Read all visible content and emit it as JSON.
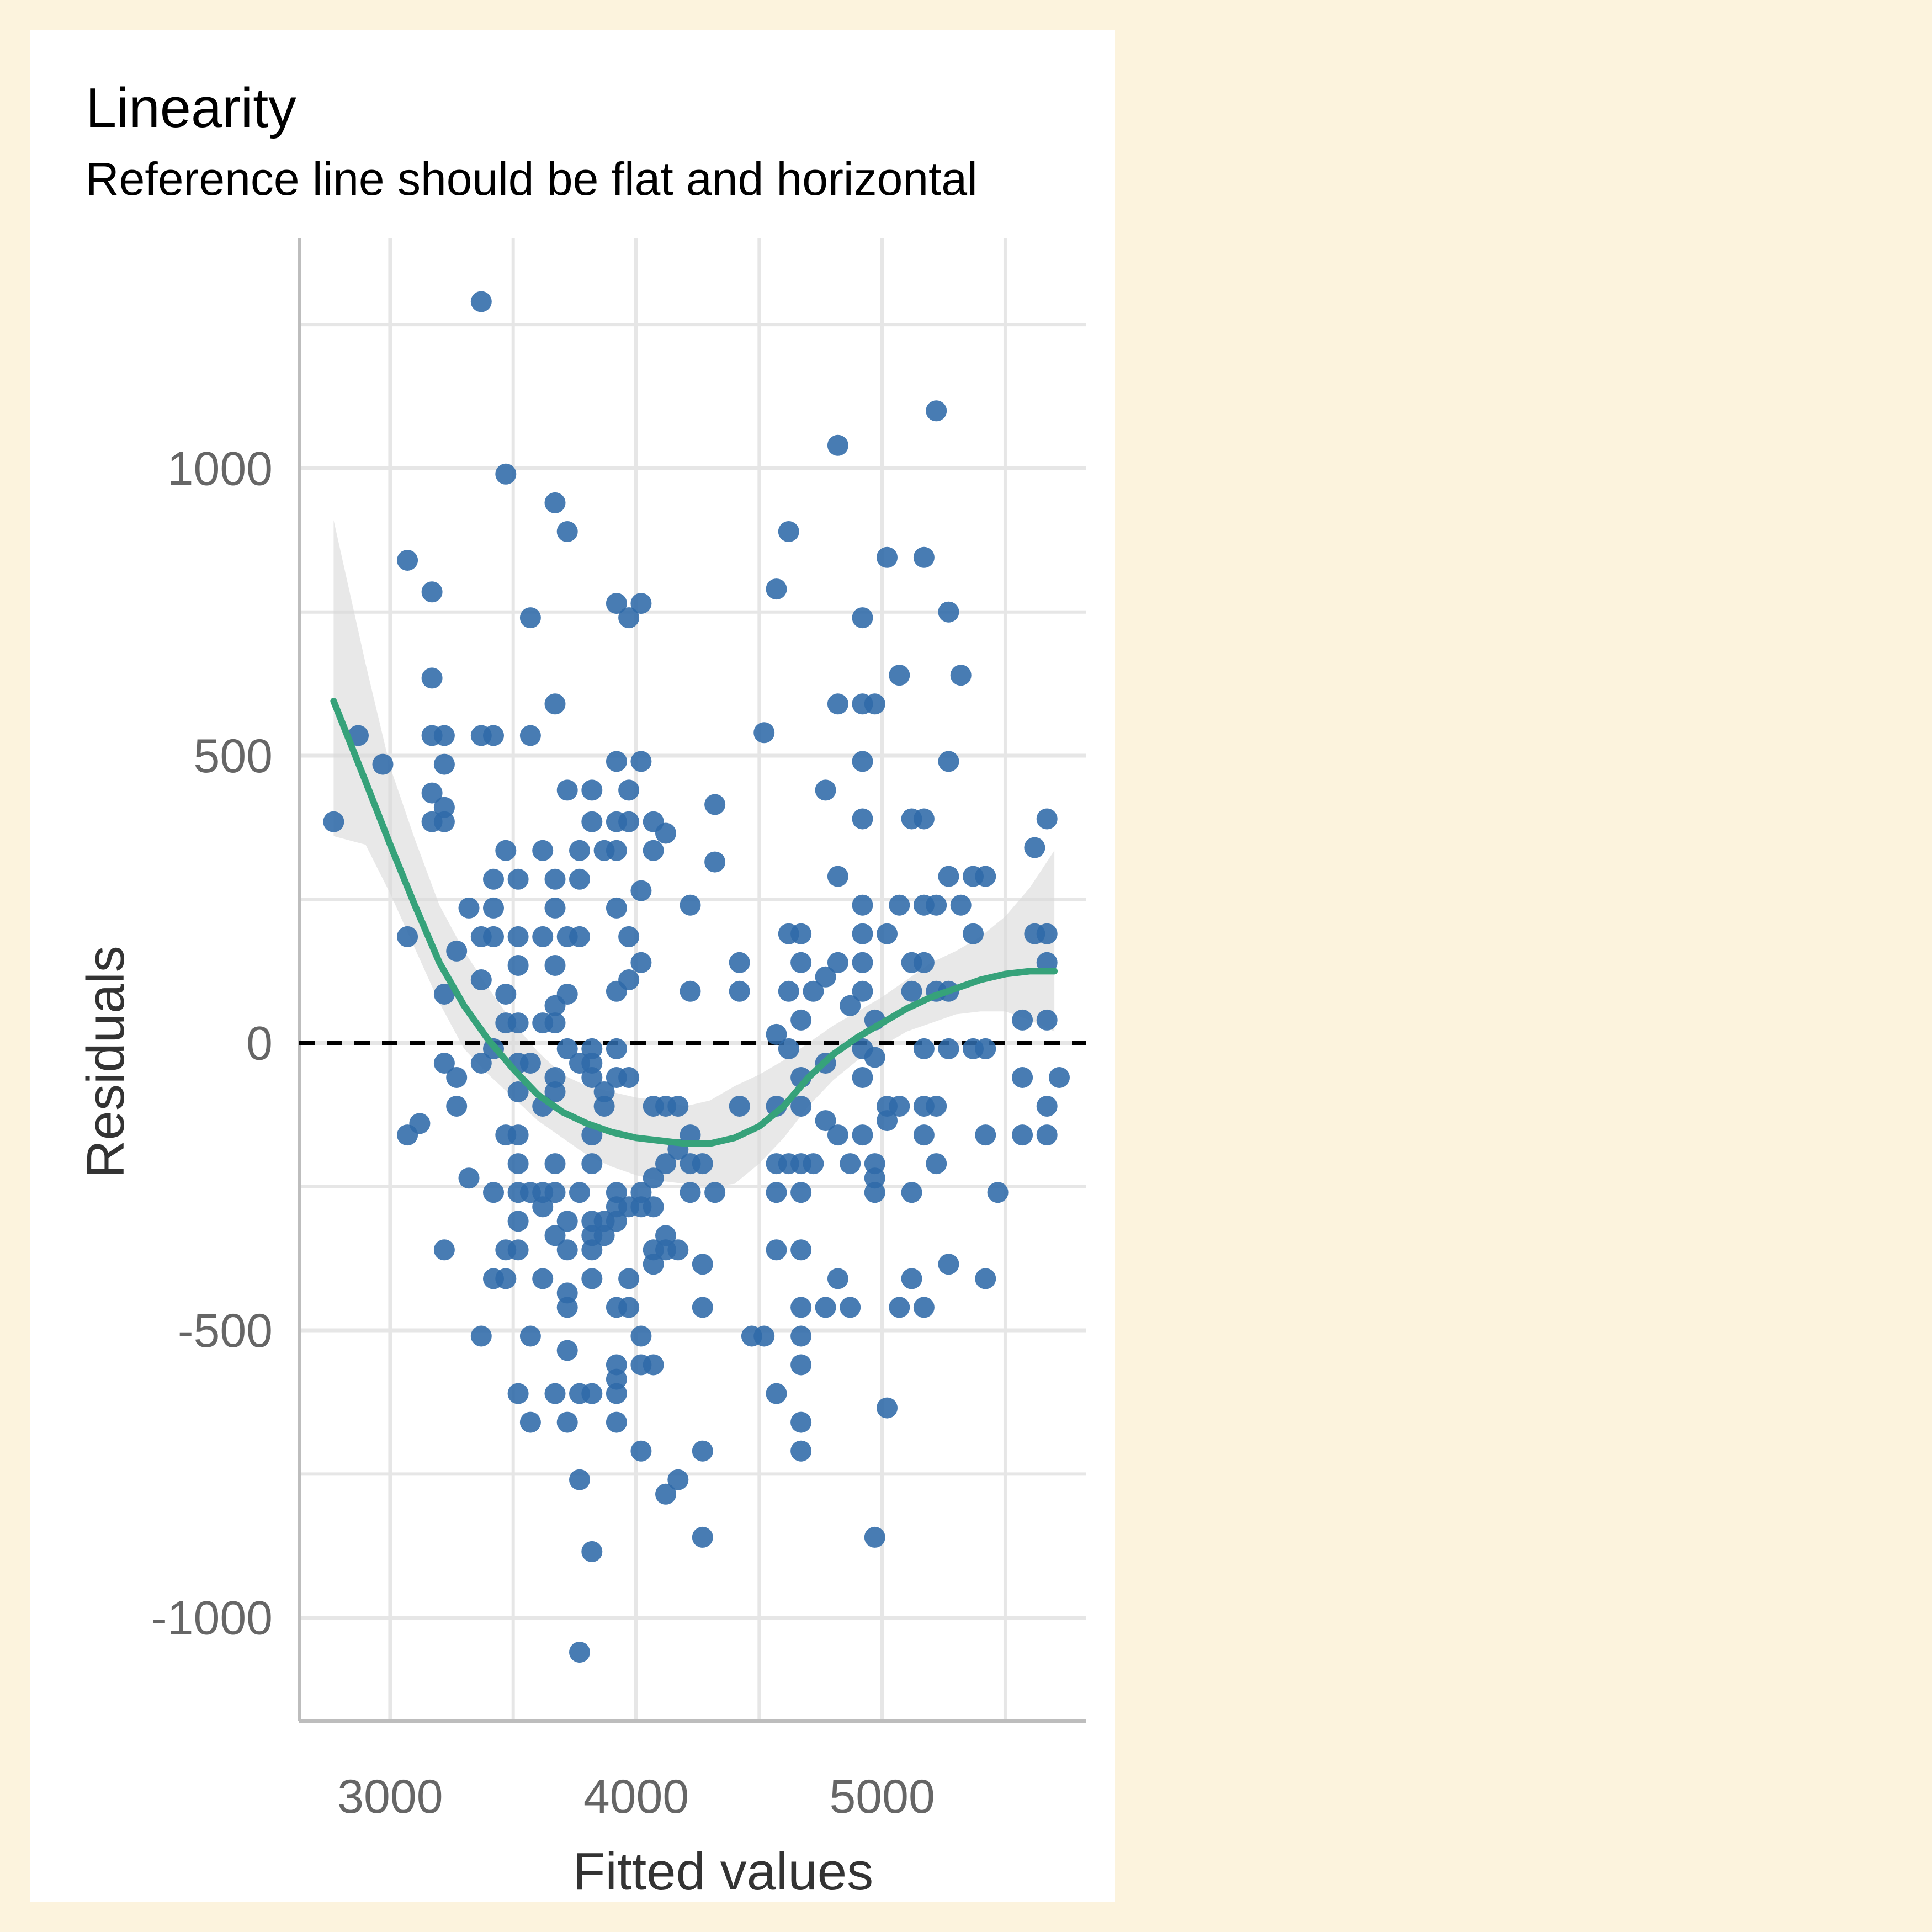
{
  "chart_data": {
    "type": "scatter",
    "title": "Linearity",
    "subtitle": "Reference line should be flat and horizontal",
    "xlabel": "Fitted values",
    "ylabel": "Residuals",
    "xlim": [
      2630,
      5830
    ],
    "ylim": [
      -1180,
      1400
    ],
    "x_ticks": [
      3000,
      4000,
      5000
    ],
    "x_tick_labels": [
      "3000",
      "4000",
      "5000"
    ],
    "y_ticks": [
      -1000,
      -500,
      0,
      500,
      1000
    ],
    "y_tick_labels": [
      "-1000",
      "-500",
      "0",
      "500",
      "1000"
    ],
    "grid": true,
    "reference_line": 0,
    "colors": {
      "points": "#2f6aa8",
      "smooth": "#36a27a",
      "band": "#d9d9d9",
      "grid": "#e6e6e6",
      "axis": "#bdbdbd",
      "reference": "#000000",
      "panel": "#ffffff",
      "background": "#fcf3dd"
    },
    "points": [
      [
        2770,
        385
      ],
      [
        2870,
        535
      ],
      [
        2970,
        485
      ],
      [
        3070,
        840
      ],
      [
        3070,
        185
      ],
      [
        3070,
        -160
      ],
      [
        3120,
        -140
      ],
      [
        3170,
        785
      ],
      [
        3170,
        635
      ],
      [
        3170,
        535
      ],
      [
        3170,
        435
      ],
      [
        3170,
        385
      ],
      [
        3220,
        535
      ],
      [
        3220,
        485
      ],
      [
        3220,
        410
      ],
      [
        3220,
        385
      ],
      [
        3220,
        85
      ],
      [
        3220,
        -35
      ],
      [
        3220,
        -360
      ],
      [
        3270,
        160
      ],
      [
        3270,
        -60
      ],
      [
        3270,
        -110
      ],
      [
        3320,
        235
      ],
      [
        3320,
        -235
      ],
      [
        3370,
        1290
      ],
      [
        3370,
        535
      ],
      [
        3370,
        185
      ],
      [
        3370,
        110
      ],
      [
        3370,
        -35
      ],
      [
        3370,
        -510
      ],
      [
        3420,
        535
      ],
      [
        3420,
        285
      ],
      [
        3420,
        235
      ],
      [
        3420,
        185
      ],
      [
        3420,
        -10
      ],
      [
        3420,
        -260
      ],
      [
        3420,
        -410
      ],
      [
        3470,
        990
      ],
      [
        3470,
        335
      ],
      [
        3470,
        85
      ],
      [
        3470,
        35
      ],
      [
        3470,
        -160
      ],
      [
        3470,
        -360
      ],
      [
        3470,
        -410
      ],
      [
        3520,
        285
      ],
      [
        3520,
        185
      ],
      [
        3520,
        135
      ],
      [
        3520,
        35
      ],
      [
        3520,
        -35
      ],
      [
        3520,
        -85
      ],
      [
        3520,
        -160
      ],
      [
        3520,
        -210
      ],
      [
        3520,
        -260
      ],
      [
        3520,
        -310
      ],
      [
        3520,
        -360
      ],
      [
        3520,
        -610
      ],
      [
        3570,
        740
      ],
      [
        3570,
        535
      ],
      [
        3570,
        -35
      ],
      [
        3570,
        -260
      ],
      [
        3570,
        -510
      ],
      [
        3570,
        -660
      ],
      [
        3620,
        335
      ],
      [
        3620,
        185
      ],
      [
        3620,
        35
      ],
      [
        3620,
        -110
      ],
      [
        3620,
        -260
      ],
      [
        3620,
        -285
      ],
      [
        3620,
        -410
      ],
      [
        3670,
        940
      ],
      [
        3670,
        590
      ],
      [
        3670,
        285
      ],
      [
        3670,
        235
      ],
      [
        3670,
        135
      ],
      [
        3670,
        65
      ],
      [
        3670,
        35
      ],
      [
        3670,
        -60
      ],
      [
        3670,
        -85
      ],
      [
        3670,
        -210
      ],
      [
        3670,
        -260
      ],
      [
        3670,
        -335
      ],
      [
        3670,
        -610
      ],
      [
        3720,
        890
      ],
      [
        3720,
        440
      ],
      [
        3720,
        185
      ],
      [
        3720,
        85
      ],
      [
        3720,
        -10
      ],
      [
        3720,
        -310
      ],
      [
        3720,
        -360
      ],
      [
        3720,
        -435
      ],
      [
        3720,
        -460
      ],
      [
        3720,
        -535
      ],
      [
        3720,
        -660
      ],
      [
        3770,
        335
      ],
      [
        3770,
        285
      ],
      [
        3770,
        185
      ],
      [
        3770,
        -35
      ],
      [
        3770,
        -260
      ],
      [
        3770,
        -610
      ],
      [
        3770,
        -760
      ],
      [
        3770,
        -1060
      ],
      [
        3820,
        440
      ],
      [
        3820,
        385
      ],
      [
        3820,
        -10
      ],
      [
        3820,
        -35
      ],
      [
        3820,
        -60
      ],
      [
        3820,
        -160
      ],
      [
        3820,
        -210
      ],
      [
        3820,
        -310
      ],
      [
        3820,
        -335
      ],
      [
        3820,
        -360
      ],
      [
        3820,
        -410
      ],
      [
        3820,
        -610
      ],
      [
        3820,
        -885
      ],
      [
        3870,
        335
      ],
      [
        3870,
        -85
      ],
      [
        3870,
        -110
      ],
      [
        3870,
        -310
      ],
      [
        3870,
        -335
      ],
      [
        3920,
        765
      ],
      [
        3920,
        490
      ],
      [
        3920,
        385
      ],
      [
        3920,
        335
      ],
      [
        3920,
        235
      ],
      [
        3920,
        90
      ],
      [
        3920,
        -10
      ],
      [
        3920,
        -60
      ],
      [
        3920,
        -260
      ],
      [
        3920,
        -285
      ],
      [
        3920,
        -310
      ],
      [
        3920,
        -460
      ],
      [
        3920,
        -560
      ],
      [
        3920,
        -585
      ],
      [
        3920,
        -610
      ],
      [
        3920,
        -660
      ],
      [
        3970,
        740
      ],
      [
        3970,
        440
      ],
      [
        3970,
        385
      ],
      [
        3970,
        185
      ],
      [
        3970,
        110
      ],
      [
        3970,
        -60
      ],
      [
        3970,
        -285
      ],
      [
        3970,
        -410
      ],
      [
        3970,
        -460
      ],
      [
        4020,
        765
      ],
      [
        4020,
        490
      ],
      [
        4020,
        265
      ],
      [
        4020,
        140
      ],
      [
        4020,
        -260
      ],
      [
        4020,
        -285
      ],
      [
        4020,
        -510
      ],
      [
        4020,
        -560
      ],
      [
        4020,
        -710
      ],
      [
        4070,
        385
      ],
      [
        4070,
        335
      ],
      [
        4070,
        -110
      ],
      [
        4070,
        -235
      ],
      [
        4070,
        -285
      ],
      [
        4070,
        -360
      ],
      [
        4070,
        -385
      ],
      [
        4070,
        -560
      ],
      [
        4120,
        365
      ],
      [
        4120,
        -110
      ],
      [
        4120,
        -210
      ],
      [
        4120,
        -335
      ],
      [
        4120,
        -360
      ],
      [
        4120,
        -785
      ],
      [
        4170,
        -110
      ],
      [
        4170,
        -185
      ],
      [
        4170,
        -360
      ],
      [
        4170,
        -760
      ],
      [
        4220,
        240
      ],
      [
        4220,
        90
      ],
      [
        4220,
        -160
      ],
      [
        4220,
        -210
      ],
      [
        4220,
        -260
      ],
      [
        4270,
        -210
      ],
      [
        4270,
        -385
      ],
      [
        4270,
        -460
      ],
      [
        4270,
        -710
      ],
      [
        4270,
        -860
      ],
      [
        4320,
        415
      ],
      [
        4320,
        315
      ],
      [
        4320,
        -260
      ],
      [
        4420,
        140
      ],
      [
        4420,
        90
      ],
      [
        4420,
        -110
      ],
      [
        4470,
        -510
      ],
      [
        4520,
        540
      ],
      [
        4520,
        -510
      ],
      [
        4570,
        790
      ],
      [
        4570,
        15
      ],
      [
        4570,
        -110
      ],
      [
        4570,
        -210
      ],
      [
        4570,
        -260
      ],
      [
        4570,
        -360
      ],
      [
        4570,
        -610
      ],
      [
        4620,
        890
      ],
      [
        4620,
        190
      ],
      [
        4620,
        90
      ],
      [
        4620,
        -10
      ],
      [
        4620,
        -210
      ],
      [
        4670,
        190
      ],
      [
        4670,
        140
      ],
      [
        4670,
        40
      ],
      [
        4670,
        -60
      ],
      [
        4670,
        -110
      ],
      [
        4670,
        -210
      ],
      [
        4670,
        -260
      ],
      [
        4670,
        -360
      ],
      [
        4670,
        -460
      ],
      [
        4670,
        -510
      ],
      [
        4670,
        -560
      ],
      [
        4670,
        -660
      ],
      [
        4670,
        -710
      ],
      [
        4720,
        90
      ],
      [
        4720,
        -210
      ],
      [
        4770,
        440
      ],
      [
        4770,
        115
      ],
      [
        4770,
        -35
      ],
      [
        4770,
        -135
      ],
      [
        4770,
        -460
      ],
      [
        4820,
        590
      ],
      [
        4820,
        290
      ],
      [
        4820,
        140
      ],
      [
        4820,
        -160
      ],
      [
        4820,
        -410
      ],
      [
        4820,
        1040
      ],
      [
        4870,
        65
      ],
      [
        4870,
        -210
      ],
      [
        4870,
        -460
      ],
      [
        4920,
        740
      ],
      [
        4920,
        590
      ],
      [
        4920,
        490
      ],
      [
        4920,
        390
      ],
      [
        4920,
        240
      ],
      [
        4920,
        190
      ],
      [
        4920,
        140
      ],
      [
        4920,
        90
      ],
      [
        4920,
        -10
      ],
      [
        4920,
        -60
      ],
      [
        4920,
        -160
      ],
      [
        4970,
        590
      ],
      [
        4970,
        40
      ],
      [
        4970,
        -25
      ],
      [
        4970,
        -210
      ],
      [
        4970,
        -235
      ],
      [
        4970,
        -260
      ],
      [
        4970,
        -860
      ],
      [
        5020,
        845
      ],
      [
        5020,
        190
      ],
      [
        5020,
        -110
      ],
      [
        5020,
        -135
      ],
      [
        5020,
        -635
      ],
      [
        5070,
        640
      ],
      [
        5070,
        240
      ],
      [
        5070,
        -110
      ],
      [
        5070,
        -460
      ],
      [
        5120,
        390
      ],
      [
        5120,
        140
      ],
      [
        5120,
        90
      ],
      [
        5120,
        -260
      ],
      [
        5120,
        -410
      ],
      [
        5170,
        845
      ],
      [
        5170,
        390
      ],
      [
        5170,
        240
      ],
      [
        5170,
        140
      ],
      [
        5170,
        -10
      ],
      [
        5170,
        -110
      ],
      [
        5170,
        -160
      ],
      [
        5170,
        -460
      ],
      [
        5220,
        1100
      ],
      [
        5220,
        240
      ],
      [
        5220,
        90
      ],
      [
        5220,
        -110
      ],
      [
        5220,
        -210
      ],
      [
        5270,
        750
      ],
      [
        5270,
        490
      ],
      [
        5270,
        290
      ],
      [
        5270,
        90
      ],
      [
        5270,
        -10
      ],
      [
        5270,
        -385
      ],
      [
        5320,
        640
      ],
      [
        5320,
        240
      ],
      [
        5370,
        290
      ],
      [
        5370,
        190
      ],
      [
        5370,
        -10
      ],
      [
        5420,
        290
      ],
      [
        5420,
        -10
      ],
      [
        5420,
        -160
      ],
      [
        5420,
        -410
      ],
      [
        5470,
        -260
      ],
      [
        5570,
        40
      ],
      [
        5570,
        -60
      ],
      [
        5570,
        -160
      ],
      [
        5620,
        340
      ],
      [
        5620,
        190
      ],
      [
        5670,
        390
      ],
      [
        5670,
        190
      ],
      [
        5670,
        140
      ],
      [
        5670,
        40
      ],
      [
        5670,
        -110
      ],
      [
        5670,
        -160
      ],
      [
        5720,
        -60
      ]
    ],
    "smooth_line": [
      [
        2770,
        595
      ],
      [
        2900,
        455
      ],
      [
        3000,
        345
      ],
      [
        3100,
        240
      ],
      [
        3200,
        140
      ],
      [
        3300,
        65
      ],
      [
        3400,
        5
      ],
      [
        3500,
        -45
      ],
      [
        3600,
        -90
      ],
      [
        3700,
        -120
      ],
      [
        3800,
        -140
      ],
      [
        3900,
        -155
      ],
      [
        4000,
        -165
      ],
      [
        4100,
        -170
      ],
      [
        4200,
        -175
      ],
      [
        4300,
        -175
      ],
      [
        4400,
        -165
      ],
      [
        4500,
        -145
      ],
      [
        4600,
        -110
      ],
      [
        4700,
        -60
      ],
      [
        4800,
        -20
      ],
      [
        4900,
        10
      ],
      [
        5000,
        35
      ],
      [
        5100,
        60
      ],
      [
        5200,
        80
      ],
      [
        5300,
        95
      ],
      [
        5400,
        110
      ],
      [
        5500,
        120
      ],
      [
        5600,
        125
      ],
      [
        5700,
        125
      ]
    ],
    "confidence_band": [
      [
        2770,
        360,
        910
      ],
      [
        2900,
        345,
        660
      ],
      [
        3000,
        260,
        480
      ],
      [
        3100,
        165,
        355
      ],
      [
        3200,
        70,
        240
      ],
      [
        3300,
        -10,
        160
      ],
      [
        3400,
        -55,
        95
      ],
      [
        3500,
        -95,
        35
      ],
      [
        3600,
        -135,
        -15
      ],
      [
        3700,
        -165,
        -55
      ],
      [
        3800,
        -195,
        -75
      ],
      [
        3900,
        -215,
        -85
      ],
      [
        4000,
        -230,
        -95
      ],
      [
        4100,
        -240,
        -100
      ],
      [
        4200,
        -245,
        -110
      ],
      [
        4300,
        -250,
        -100
      ],
      [
        4400,
        -245,
        -75
      ],
      [
        4500,
        -210,
        -55
      ],
      [
        4600,
        -165,
        -30
      ],
      [
        4700,
        -110,
        0
      ],
      [
        4800,
        -65,
        30
      ],
      [
        4900,
        -30,
        55
      ],
      [
        5000,
        -5,
        80
      ],
      [
        5100,
        20,
        110
      ],
      [
        5200,
        35,
        140
      ],
      [
        5300,
        50,
        160
      ],
      [
        5400,
        55,
        185
      ],
      [
        5500,
        55,
        220
      ],
      [
        5600,
        40,
        270
      ],
      [
        5700,
        20,
        335
      ]
    ]
  }
}
